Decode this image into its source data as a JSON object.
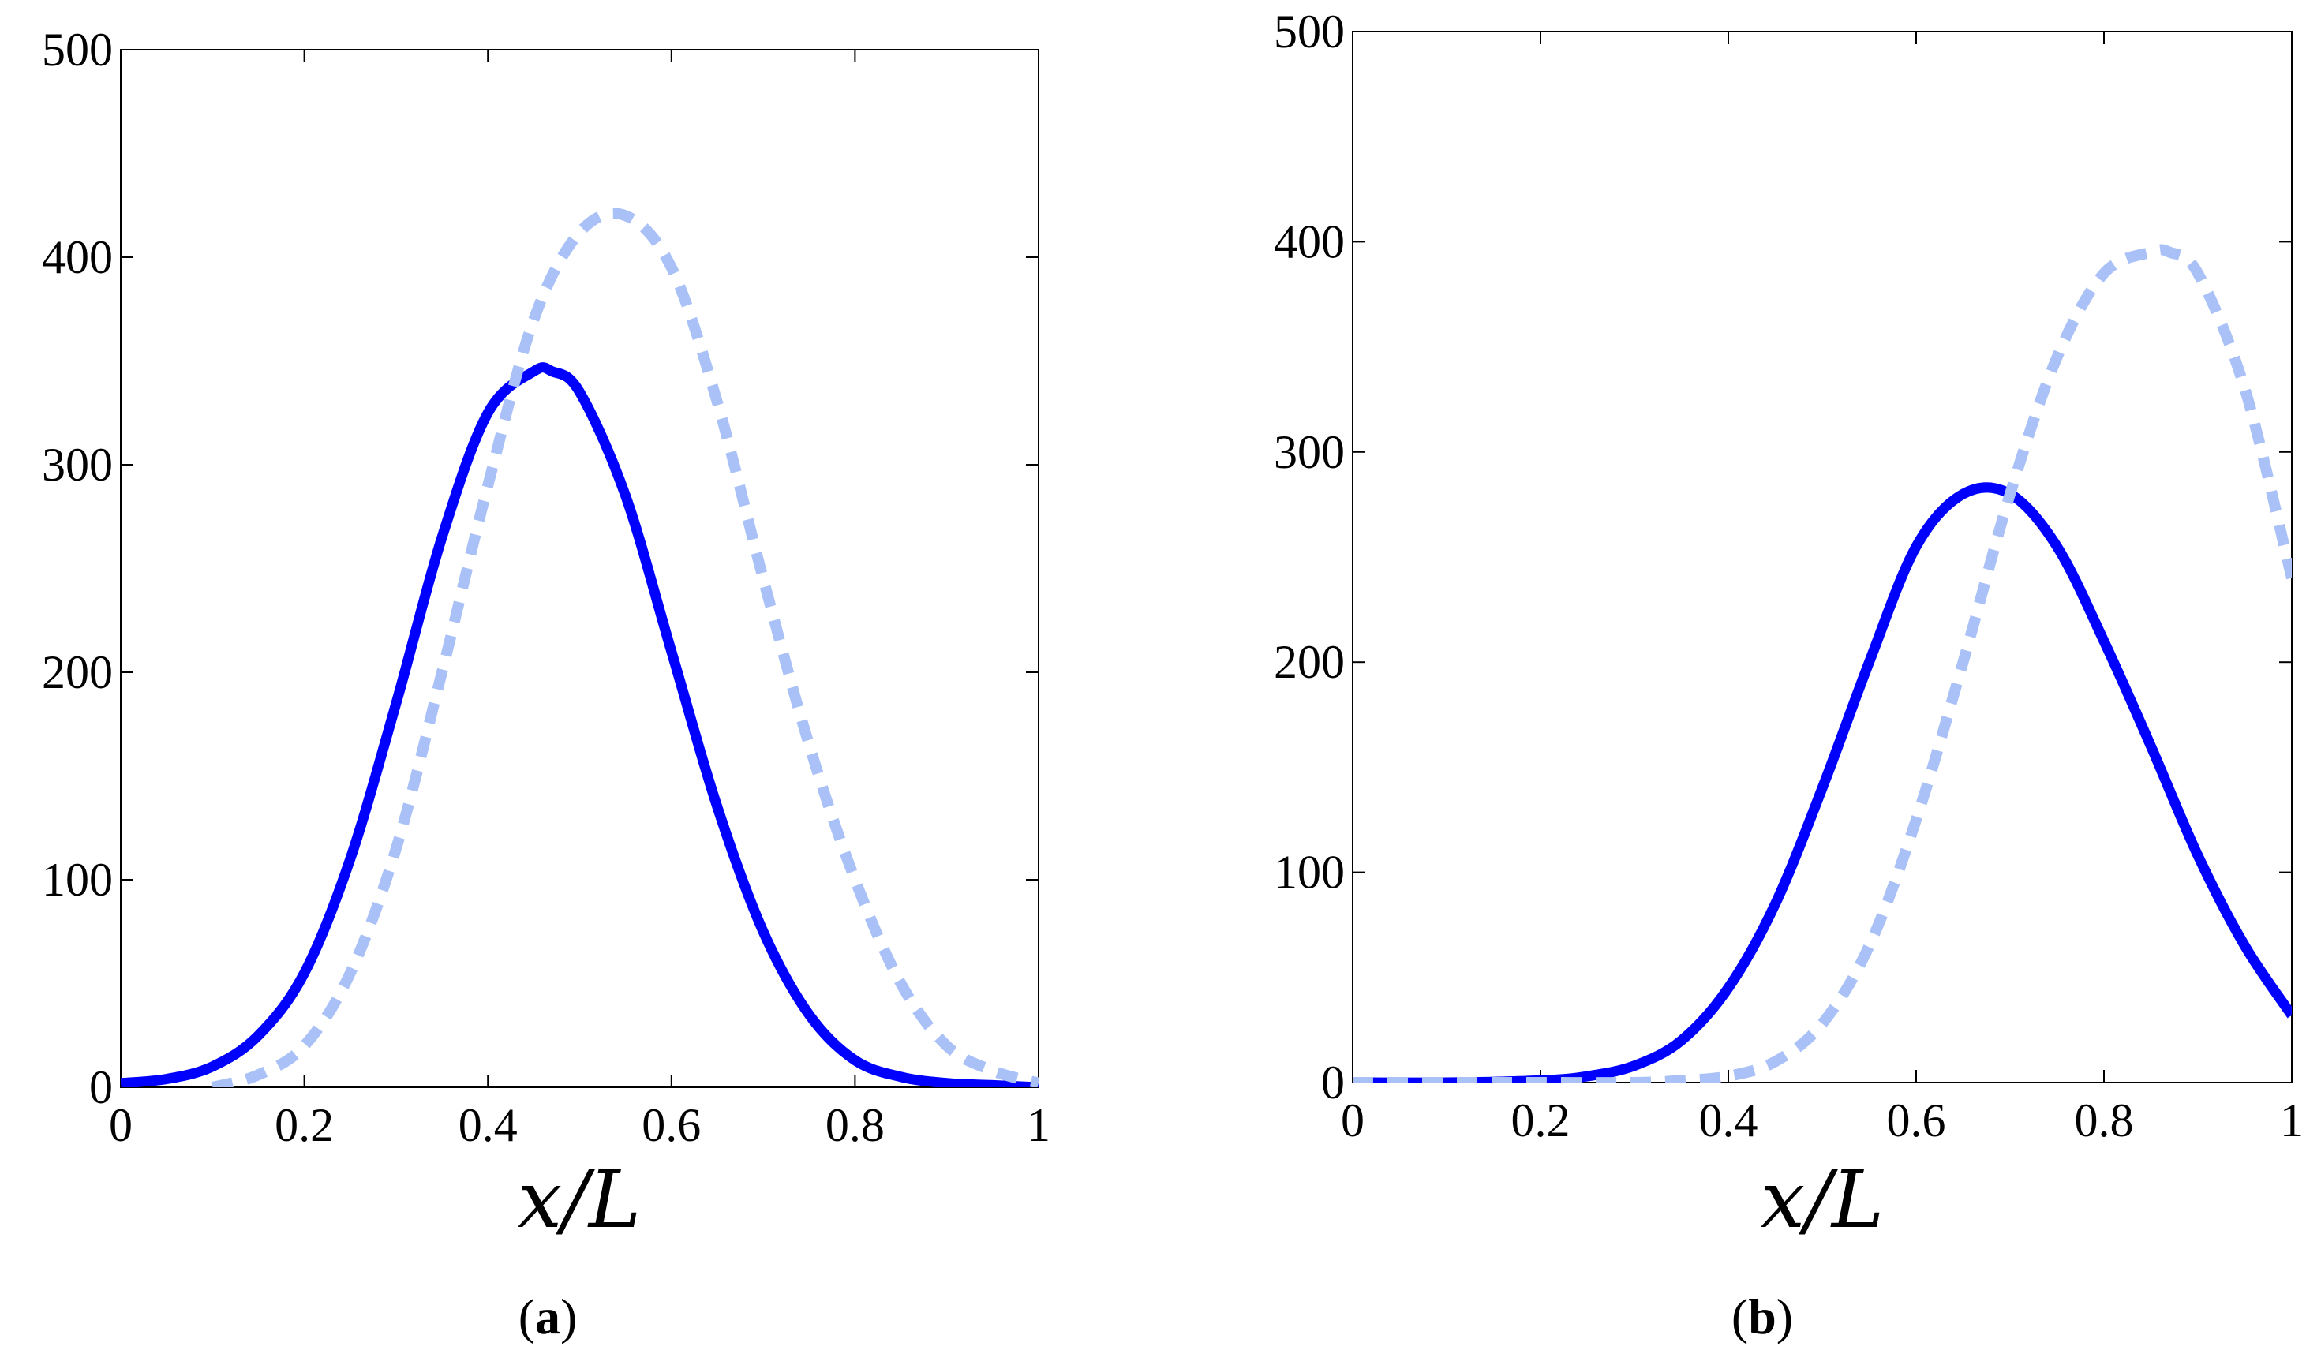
{
  "chart_data": [
    {
      "type": "line",
      "panel_label": "a",
      "xlabel": "x/L",
      "ylabel": "",
      "xlim": [
        0,
        1
      ],
      "ylim": [
        0,
        500
      ],
      "xticks": [
        "0",
        "0.2",
        "0.4",
        "0.6",
        "0.8",
        "1"
      ],
      "yticks": [
        "0",
        "100",
        "200",
        "300",
        "400",
        "500"
      ],
      "grid": false,
      "series": [
        {
          "name": "solid",
          "style": "solid",
          "color": "#0000ff",
          "x": [
            0,
            0.05,
            0.1,
            0.15,
            0.2,
            0.25,
            0.3,
            0.35,
            0.4,
            0.45,
            0.47,
            0.5,
            0.55,
            0.6,
            0.65,
            0.7,
            0.75,
            0.8,
            0.85,
            0.9,
            0.95,
            1.0
          ],
          "y": [
            2,
            4,
            10,
            25,
            55,
            110,
            185,
            265,
            325,
            345,
            345,
            335,
            285,
            210,
            135,
            75,
            35,
            13,
            5,
            2,
            1,
            0
          ]
        },
        {
          "name": "dashed",
          "style": "dashed",
          "color": "#a9c1f7",
          "x": [
            0.1,
            0.15,
            0.2,
            0.25,
            0.3,
            0.35,
            0.4,
            0.45,
            0.5,
            0.55,
            0.6,
            0.65,
            0.7,
            0.75,
            0.8,
            0.85,
            0.9,
            0.95,
            1.0
          ],
          "y": [
            0,
            6,
            20,
            55,
            115,
            200,
            290,
            370,
            412,
            420,
            395,
            330,
            245,
            165,
            100,
            50,
            20,
            8,
            2
          ]
        }
      ]
    },
    {
      "type": "line",
      "panel_label": "b",
      "xlabel": "x/L",
      "ylabel": "",
      "xlim": [
        0,
        1
      ],
      "ylim": [
        0,
        500
      ],
      "xticks": [
        "0",
        "0.2",
        "0.4",
        "0.6",
        "0.8",
        "1"
      ],
      "yticks": [
        "0",
        "100",
        "200",
        "300",
        "400",
        "500"
      ],
      "grid": false,
      "series": [
        {
          "name": "solid",
          "style": "solid",
          "color": "#0000ff",
          "x": [
            0,
            0.1,
            0.2,
            0.25,
            0.3,
            0.35,
            0.4,
            0.45,
            0.5,
            0.55,
            0.6,
            0.65,
            0.7,
            0.75,
            0.8,
            0.85,
            0.9,
            0.95,
            1.0
          ],
          "y": [
            0,
            0,
            1,
            3,
            8,
            20,
            45,
            85,
            140,
            200,
            255,
            280,
            280,
            255,
            210,
            160,
            108,
            65,
            32
          ]
        },
        {
          "name": "dashed",
          "style": "dashed",
          "color": "#a9c1f7",
          "x": [
            0,
            0.1,
            0.2,
            0.3,
            0.35,
            0.4,
            0.45,
            0.5,
            0.55,
            0.6,
            0.65,
            0.7,
            0.75,
            0.8,
            0.85,
            0.87,
            0.9,
            0.95,
            1.0
          ],
          "y": [
            0,
            0,
            0,
            0,
            1,
            3,
            10,
            28,
            65,
            125,
            200,
            280,
            345,
            385,
            395,
            395,
            385,
            330,
            240
          ]
        }
      ]
    }
  ]
}
